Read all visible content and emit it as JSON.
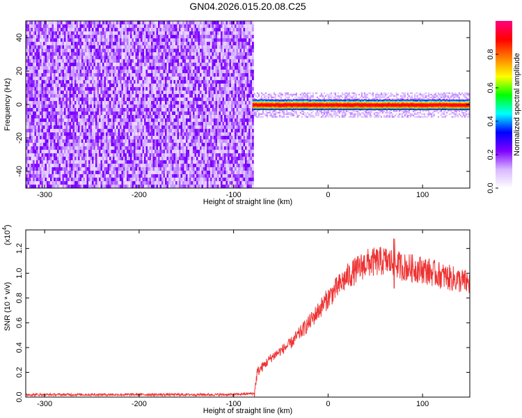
{
  "title": "GN04.2026.015.20.08.C25",
  "chart_data": [
    {
      "type": "heatmap",
      "title": "GN04.2026.015.20.08.C25",
      "xlabel": "Height of straight line (km)",
      "ylabel": "Frequency (Hz)",
      "xlim": [
        -320,
        150
      ],
      "ylim": [
        -50,
        50
      ],
      "xticks": [
        -300,
        -200,
        -100,
        0,
        100
      ],
      "xtick_labels": [
        "-300",
        "-200",
        "-100",
        "0",
        "100"
      ],
      "yticks": [
        -40,
        -20,
        0,
        20,
        40
      ],
      "ytick_labels": [
        "-40",
        "-20",
        "0",
        "20",
        "40"
      ],
      "colorbar": {
        "label": "Normalized spectral amplitude",
        "range": [
          0.0,
          1.0
        ],
        "ticks": [
          0.0,
          0.2,
          0.4,
          0.6,
          0.8
        ],
        "tick_labels": [
          "0.0",
          "0.2",
          "0.4",
          "0.6",
          "0.8"
        ],
        "colormap": [
          "#ffffff",
          "#d8b8ff",
          "#8000ff",
          "#0000ff",
          "#00ffff",
          "#00ff00",
          "#ffff00",
          "#ff8000",
          "#ff0000",
          "#ff0080"
        ]
      },
      "noise_region": {
        "x_range": [
          -320,
          -80
        ],
        "y_range": [
          -50,
          50
        ],
        "amplitude": [
          0.05,
          0.25
        ]
      },
      "signal_band": {
        "x_range": [
          -80,
          150
        ],
        "frequency": 0,
        "half_width_hz": 3,
        "peak_amplitude": 0.95
      }
    },
    {
      "type": "line",
      "xlabel": "Height of straight line (km)",
      "ylabel": "SNR (10 * v/v)",
      "scale_note": "(x10",
      "scale_exponent": "4",
      "xlim": [
        -320,
        150
      ],
      "ylim": [
        0,
        1.35
      ],
      "xticks": [
        -300,
        -200,
        -100,
        0,
        100
      ],
      "xtick_labels": [
        "-300",
        "-200",
        "-100",
        "0",
        "100"
      ],
      "yticks": [
        0.0,
        0.2,
        0.4,
        0.6,
        0.8,
        1.0,
        1.2
      ],
      "ytick_labels": [
        "0.0",
        "0.2",
        "0.4",
        "0.6",
        "0.8",
        "1.0",
        "1.2"
      ],
      "color": "#ee3333",
      "x": [
        -320,
        -200,
        -100,
        -78,
        -75,
        -60,
        -40,
        -20,
        0,
        20,
        40,
        60,
        70,
        80,
        100,
        120,
        150
      ],
      "y": [
        0.02,
        0.02,
        0.02,
        0.03,
        0.2,
        0.32,
        0.43,
        0.6,
        0.8,
        0.97,
        1.08,
        1.1,
        1.08,
        1.05,
        1.03,
        0.98,
        0.92
      ]
    }
  ]
}
